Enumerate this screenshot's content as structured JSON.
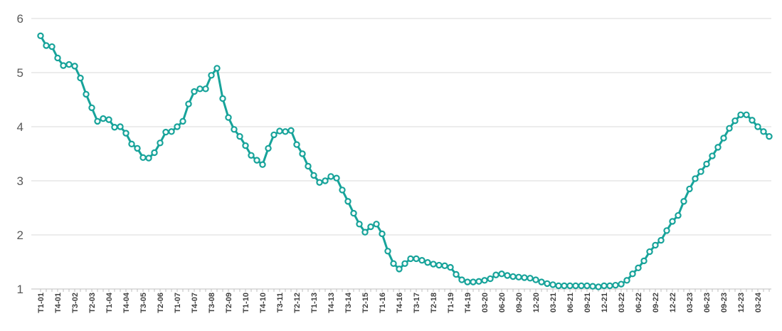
{
  "chart_data": {
    "type": "line",
    "series_color": "#17a39a",
    "grid": true,
    "ylim": [
      1,
      6
    ],
    "yticks": [
      "1",
      "2",
      "3",
      "4",
      "5",
      "6"
    ],
    "xtick_labels": [
      "T1-01",
      "T4-01",
      "T3-02",
      "T2-03",
      "T1-04",
      "T4-04",
      "T3-05",
      "T2-06",
      "T1-07",
      "T4-07",
      "T3-08",
      "T2-09",
      "T1-10",
      "T4-10",
      "T3-11",
      "T2-12",
      "T1-13",
      "T4-13",
      "T3-14",
      "T2-15",
      "T1-16",
      "T4-16",
      "T3-17",
      "T2-18",
      "T1-19",
      "T4-19",
      "03-20",
      "06-20",
      "09-20",
      "12-20",
      "03-21",
      "06-21",
      "09-21",
      "12-21",
      "03-22",
      "06-22",
      "09-22",
      "12-22",
      "03-23",
      "06-23",
      "09-23",
      "12-23",
      "03-24"
    ],
    "values": [
      5.68,
      5.5,
      5.48,
      5.27,
      5.13,
      5.15,
      5.12,
      4.9,
      4.6,
      4.35,
      4.1,
      4.15,
      4.13,
      3.99,
      4.0,
      3.88,
      3.68,
      3.6,
      3.43,
      3.42,
      3.52,
      3.7,
      3.9,
      3.91,
      4.0,
      4.1,
      4.42,
      4.65,
      4.7,
      4.7,
      4.95,
      5.08,
      4.52,
      4.17,
      3.95,
      3.82,
      3.65,
      3.47,
      3.38,
      3.3,
      3.6,
      3.85,
      3.92,
      3.91,
      3.93,
      3.67,
      3.5,
      3.27,
      3.1,
      2.97,
      3.0,
      3.08,
      3.05,
      2.83,
      2.62,
      2.4,
      2.2,
      2.05,
      2.15,
      2.2,
      2.02,
      1.7,
      1.47,
      1.37,
      1.47,
      1.56,
      1.56,
      1.53,
      1.49,
      1.46,
      1.44,
      1.43,
      1.4,
      1.27,
      1.17,
      1.13,
      1.13,
      1.14,
      1.16,
      1.19,
      1.26,
      1.28,
      1.25,
      1.23,
      1.22,
      1.21,
      1.2,
      1.17,
      1.13,
      1.1,
      1.08,
      1.06,
      1.06,
      1.06,
      1.06,
      1.06,
      1.06,
      1.05,
      1.04,
      1.06,
      1.06,
      1.07,
      1.09,
      1.16,
      1.28,
      1.39,
      1.52,
      1.69,
      1.81,
      1.9,
      2.08,
      2.25,
      2.36,
      2.62,
      2.85,
      3.04,
      3.17,
      3.31,
      3.46,
      3.62,
      3.79,
      3.97,
      4.11,
      4.22,
      4.22,
      4.12,
      4.0,
      3.91,
      3.82
    ]
  }
}
